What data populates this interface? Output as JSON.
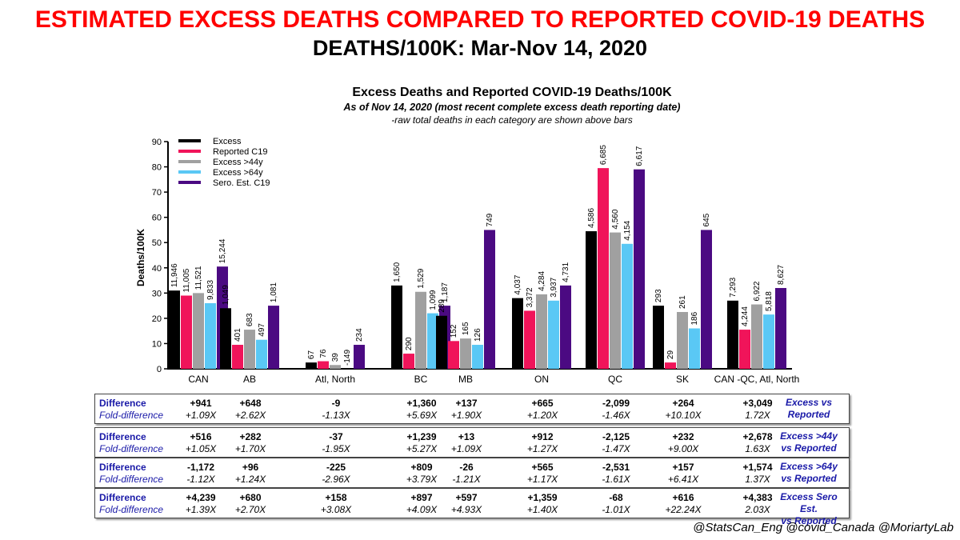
{
  "header": {
    "title": "ESTIMATED EXCESS DEATHS COMPARED TO REPORTED COVID-19 DEATHS",
    "subtitle": "DEATHS/100K: Mar-Nov 14, 2020"
  },
  "chart_data": {
    "type": "bar",
    "title": "Excess Deaths and Reported COVID-19 Deaths/100K",
    "subtitle": "As of Nov 14, 2020 (most recent complete excess death reporting date)",
    "note": "-raw total deaths in each category are shown above bars",
    "ylabel": "Deaths/100K",
    "ylim": [
      0,
      90
    ],
    "yticks": [
      0,
      10,
      20,
      30,
      40,
      50,
      60,
      70,
      80,
      90
    ],
    "legend_position": "top-left",
    "categories": [
      "CAN",
      "AB",
      "Atl, North",
      "BC",
      "MB",
      "ON",
      "QC",
      "SK",
      "CAN -QC, Atl, North"
    ],
    "series": [
      {
        "name": "Excess",
        "color": "#000000",
        "values": [
          31,
          24,
          2.5,
          33,
          21,
          28,
          54.5,
          25,
          27
        ],
        "labels": [
          "11,946",
          "1,049",
          "67",
          "1,650",
          "289",
          "4,037",
          "4,586",
          "293",
          "7,293"
        ]
      },
      {
        "name": "Reported C19",
        "color": "#f0145a",
        "values": [
          29,
          9.5,
          3,
          6,
          11,
          23,
          79.5,
          2.5,
          15.5
        ],
        "labels": [
          "11,005",
          "401",
          "76",
          "290",
          "152",
          "3,372",
          "6,685",
          "29",
          "4,244"
        ]
      },
      {
        "name": "Excess >44y",
        "color": "#a0a0a0",
        "values": [
          30,
          15.5,
          1.5,
          30.5,
          12,
          29.5,
          54,
          22.5,
          25.5
        ],
        "labels": [
          "11,521",
          "683",
          "39",
          "1,529",
          "165",
          "4,284",
          "4,560",
          "261",
          "6,922"
        ]
      },
      {
        "name": "Excess >64y",
        "color": "#5ac8f5",
        "values": [
          26,
          11.5,
          0,
          22,
          9.5,
          27,
          49.5,
          16,
          21.5
        ],
        "labels": [
          "9,833",
          "497",
          "-149",
          "1,099",
          "126",
          "3,937",
          "4,154",
          "186",
          "5,818"
        ]
      },
      {
        "name": "Sero. Est. C19",
        "color": "#4b0a82",
        "values": [
          40.5,
          25,
          9.5,
          25,
          55,
          33,
          79,
          55,
          32
        ],
        "labels": [
          "15,244",
          "1,081",
          "234",
          "1,187",
          "749",
          "4,731",
          "6,617",
          "645",
          "8,627"
        ]
      }
    ]
  },
  "tables": [
    {
      "label_top": "Difference",
      "label_bottom": "Fold-difference",
      "diff": [
        "+941",
        "+648",
        "-9",
        "+1,360",
        "+137",
        "+665",
        "-2,099",
        "+264",
        "+3,049"
      ],
      "fold": [
        "+1.09X",
        "+2.62X",
        "-1.13X",
        "+5.69X",
        "+1.90X",
        "+1.20X",
        "-1.46X",
        "+10.10X",
        "1.72X"
      ],
      "comparison_line1": "Excess vs",
      "comparison_line2": "Reported"
    },
    {
      "label_top": "Difference",
      "label_bottom": "Fold-difference",
      "diff": [
        "+516",
        "+282",
        "-37",
        "+1,239",
        "+13",
        "+912",
        "-2,125",
        "+232",
        "+2,678"
      ],
      "fold": [
        "+1.05X",
        "+1.70X",
        "-1.95X",
        "+5.27X",
        "+1.09X",
        "+1.27X",
        "-1.47X",
        "+9.00X",
        "1.63X"
      ],
      "comparison_line1": "Excess >44y",
      "comparison_line2": "vs Reported"
    },
    {
      "label_top": "Difference",
      "label_bottom": "Fold-difference",
      "diff": [
        "-1,172",
        "+96",
        "-225",
        "+809",
        "-26",
        "+565",
        "-2,531",
        "+157",
        "+1,574"
      ],
      "fold": [
        "-1.12X",
        "+1.24X",
        "-2.96X",
        "+3.79X",
        "-1.21X",
        "+1.17X",
        "-1.61X",
        "+6.41X",
        "1.37X"
      ],
      "comparison_line1": "Excess >64y",
      "comparison_line2": "vs Reported"
    },
    {
      "label_top": "Difference",
      "label_bottom": "Fold-difference",
      "diff": [
        "+4,239",
        "+680",
        "+158",
        "+897",
        "+597",
        "+1,359",
        "-68",
        "+616",
        "+4,383"
      ],
      "fold": [
        "+1.39X",
        "+2.70X",
        "+3.08X",
        "+4.09X",
        "+4.93X",
        "+1.40X",
        "-1.01X",
        "+22.24X",
        "2.03X"
      ],
      "comparison_line1": "Excess Sero Est.",
      "comparison_line2": "vs Reported"
    }
  ],
  "footer": {
    "credit": "@StatsCan_Eng @covid_Canada @MoriartyLab"
  }
}
